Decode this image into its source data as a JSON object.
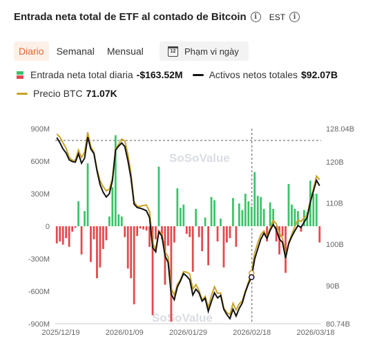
{
  "header": {
    "title": "Entrada neta total de ETF al contado de Bitcoin",
    "timezone": "EST"
  },
  "tabs": [
    {
      "label": "Diario",
      "active": true
    },
    {
      "label": "Semanal",
      "active": false
    },
    {
      "label": "Mensual",
      "active": false
    }
  ],
  "date_range": {
    "label": "Phạm vi ngày",
    "icon": "calendar-icon",
    "icon_text": "12"
  },
  "legend": {
    "inflow_label": "Entrada neta total diaria",
    "inflow_value": "-$163.52M",
    "assets_label": "Activos netos totales",
    "assets_value": "$92.07B",
    "price_label": "Precio BTC",
    "price_value": "71.07K"
  },
  "watermark": "SoSoValue",
  "colors": {
    "positive_bar": "#3cc26a",
    "negative_bar": "#e5484d",
    "assets_line": "#111111",
    "price_line": "#c9a227",
    "accent": "#e06a2c"
  },
  "chart_data": {
    "type": "bar",
    "left_axis": {
      "ticks": [
        "900M",
        "600M",
        "300M",
        "0",
        "-300M",
        "-600M",
        "-900M"
      ],
      "range": [
        -900,
        900
      ],
      "unit": "M"
    },
    "right_axis": {
      "ticks": [
        "128.04B",
        "120B",
        "110B",
        "100B",
        "90B",
        "80.74B"
      ],
      "range": [
        80.74,
        128.04
      ],
      "unit": "B"
    },
    "x_tick_labels": [
      "2025/12/19",
      "2026/01/09",
      "2026/01/29",
      "2026/02/18",
      "2026/03/18"
    ],
    "reference_date": "2026/02/18",
    "daily_net_inflow_musd": [
      -158,
      -140,
      -170,
      -110,
      -190,
      -50,
      -15,
      230,
      -260,
      140,
      580,
      -330,
      -120,
      -480,
      -380,
      -210,
      -130,
      90,
      360,
      840,
      110,
      90,
      -100,
      -390,
      -480,
      -720,
      -90,
      -20,
      -30,
      -40,
      -190,
      -820,
      -120,
      550,
      -120,
      -540,
      -180,
      -880,
      -150,
      350,
      170,
      200,
      -70,
      -100,
      -420,
      160,
      -100,
      -230,
      80,
      -360,
      270,
      240,
      -140,
      70,
      -380,
      -150,
      -110,
      260,
      -190,
      210,
      150,
      300,
      230,
      180,
      500,
      280,
      270,
      160,
      -140,
      220,
      160,
      -140,
      -260,
      -90,
      -430,
      390,
      200,
      160,
      140,
      -50,
      150,
      130,
      420,
      300,
      300,
      -150
    ]
  }
}
